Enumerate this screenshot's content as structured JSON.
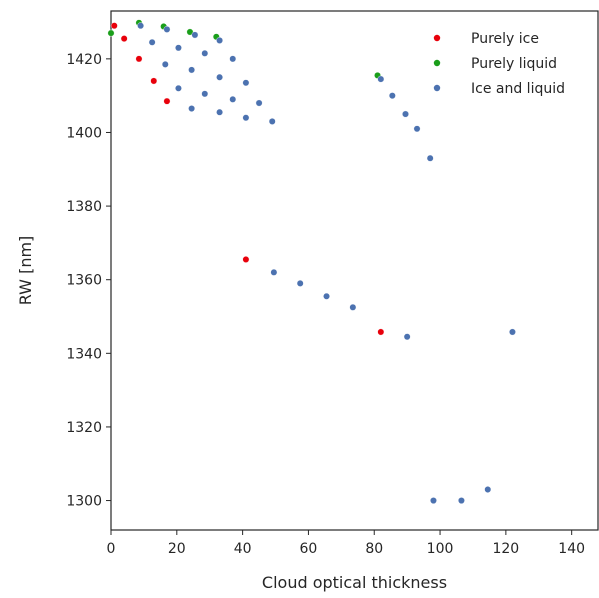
{
  "chart_data": {
    "type": "scatter",
    "title": "",
    "xlabel": "Cloud optical thickness",
    "ylabel": "RW [nm]",
    "xlim": [
      0,
      148
    ],
    "ylim": [
      1292,
      1433
    ],
    "xticks": [
      0,
      20,
      40,
      60,
      80,
      100,
      120,
      140
    ],
    "yticks": [
      1300,
      1320,
      1340,
      1360,
      1380,
      1400,
      1420
    ],
    "grid": false,
    "legend_position": "top-right",
    "series": [
      {
        "name": "Purely ice",
        "color": "#e8000b",
        "points": [
          [
            1,
            1429
          ],
          [
            4,
            1425.5
          ],
          [
            8.5,
            1420
          ],
          [
            13,
            1414
          ],
          [
            17,
            1408.5
          ],
          [
            41,
            1365.5
          ],
          [
            82,
            1345.8
          ]
        ]
      },
      {
        "name": "Purely liquid",
        "color": "#1a9e1a",
        "points": [
          [
            0,
            1427
          ],
          [
            8.5,
            1429.8
          ],
          [
            16,
            1428.8
          ],
          [
            24,
            1427.3
          ],
          [
            32,
            1426
          ],
          [
            81,
            1415.5
          ]
        ]
      },
      {
        "name": "Ice and liquid",
        "color": "#4c72b0",
        "points": [
          [
            9,
            1429
          ],
          [
            12.5,
            1424.5
          ],
          [
            17,
            1428
          ],
          [
            16.5,
            1418.5
          ],
          [
            20.5,
            1423
          ],
          [
            20.5,
            1412
          ],
          [
            25.5,
            1426.5
          ],
          [
            24.5,
            1417
          ],
          [
            24.5,
            1406.5
          ],
          [
            28.5,
            1421.5
          ],
          [
            28.5,
            1410.5
          ],
          [
            33,
            1425
          ],
          [
            33,
            1415
          ],
          [
            33,
            1405.5
          ],
          [
            37,
            1420
          ],
          [
            37,
            1409
          ],
          [
            41,
            1413.5
          ],
          [
            41,
            1404
          ],
          [
            45,
            1408
          ],
          [
            49,
            1403
          ],
          [
            49.5,
            1362
          ],
          [
            57.5,
            1359
          ],
          [
            65.5,
            1355.5
          ],
          [
            73.5,
            1352.5
          ],
          [
            82,
            1414.5
          ],
          [
            85.5,
            1410
          ],
          [
            89.5,
            1405
          ],
          [
            93,
            1401
          ],
          [
            97,
            1393
          ],
          [
            90,
            1344.5
          ],
          [
            122,
            1345.8
          ],
          [
            98,
            1300
          ],
          [
            106.5,
            1300
          ],
          [
            114.5,
            1303
          ]
        ]
      }
    ]
  }
}
